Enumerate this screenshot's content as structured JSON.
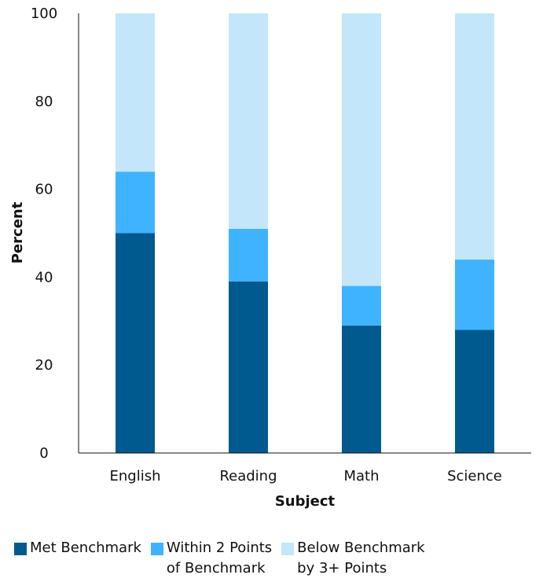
{
  "chart_data": {
    "type": "bar",
    "stacked": true,
    "title": "",
    "xlabel": "Subject",
    "ylabel": "Percent",
    "categories": [
      "English",
      "Reading",
      "Math",
      "Science"
    ],
    "ylim": [
      0,
      100
    ],
    "yticks": [
      0,
      20,
      40,
      60,
      80,
      100
    ],
    "grid": false,
    "legend_position": "bottom",
    "series": [
      {
        "name": "Met Benchmark",
        "name_lines": [
          "Met Benchmark"
        ],
        "color": "#005a8f",
        "values": [
          50,
          39,
          29,
          28
        ]
      },
      {
        "name": "Within 2 Points of Benchmark",
        "name_lines": [
          "Within 2 Points",
          "of Benchmark"
        ],
        "color": "#3fb3ff",
        "values": [
          14,
          12,
          9,
          16
        ]
      },
      {
        "name": "Below Benchmark by 3+ Points",
        "name_lines": [
          "Below Benchmark",
          "by 3+ Points"
        ],
        "color": "#c3e6fb",
        "values": [
          36,
          49,
          62,
          56
        ]
      }
    ]
  }
}
